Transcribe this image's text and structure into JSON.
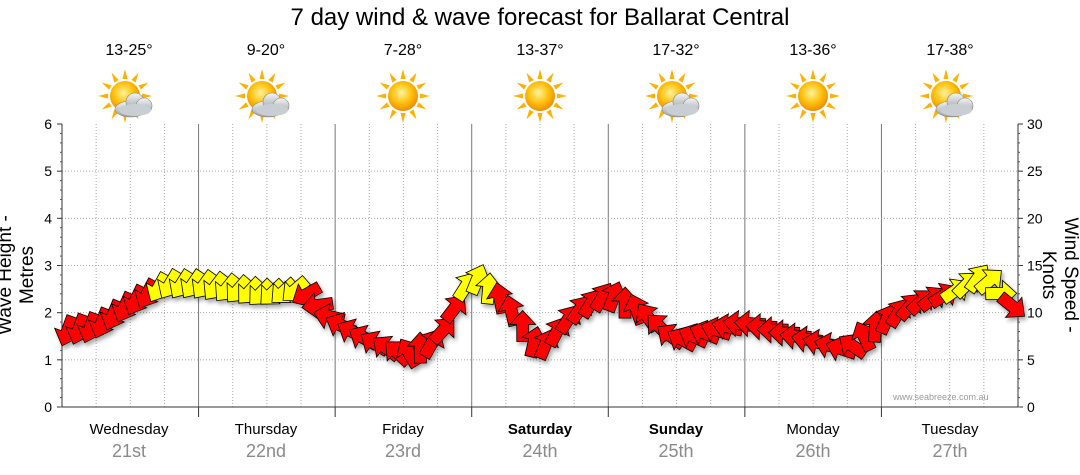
{
  "title": "7 day wind & wave forecast for Ballarat Central",
  "days": [
    {
      "name": "Wednesday",
      "date": "21st",
      "temp": "13-25°",
      "icon": "partly-cloudy-sun-icon",
      "bold": false
    },
    {
      "name": "Thursday",
      "date": "22nd",
      "temp": "9-20°",
      "icon": "partly-cloudy-sun-icon",
      "bold": false
    },
    {
      "name": "Friday",
      "date": "23rd",
      "temp": "7-28°",
      "icon": "sun-icon",
      "bold": false
    },
    {
      "name": "Saturday",
      "date": "24th",
      "temp": "13-37°",
      "icon": "sun-icon",
      "bold": true
    },
    {
      "name": "Sunday",
      "date": "25th",
      "temp": "17-32°",
      "icon": "partly-cloudy-sun-icon",
      "bold": true
    },
    {
      "name": "Monday",
      "date": "26th",
      "temp": "13-36°",
      "icon": "sun-icon",
      "bold": false
    },
    {
      "name": "Tuesday",
      "date": "27th",
      "temp": "17-38°",
      "icon": "partly-cloudy-sun-icon",
      "bold": false
    }
  ],
  "credit": "www.seabreeze.com.au",
  "colors": {
    "strong_wind": "#ff0000",
    "moderate_wind": "#ffff00",
    "grid": "#aaaaaa"
  },
  "chart_data": {
    "type": "line",
    "title": "7 day wind & wave forecast for Ballarat Central",
    "ylabel": "Wave Height - Metres",
    "y2label": "Wind Speed - Knots",
    "ylim": [
      0,
      6
    ],
    "y2lim": [
      0,
      30
    ],
    "yticks": [
      "0",
      "1",
      "2",
      "3",
      "4",
      "5",
      "6"
    ],
    "y2ticks": [
      "0",
      "5",
      "10",
      "15",
      "20",
      "25",
      "30"
    ],
    "xlim": [
      0,
      7
    ],
    "grid": true,
    "series": [
      {
        "type": "wind-arrows",
        "x": [
          0.0,
          0.25,
          0.5,
          0.75,
          1.0,
          1.25,
          1.5,
          1.75,
          2.0,
          2.25,
          2.5,
          2.75,
          3.0,
          3.25,
          3.5,
          3.75,
          4.0,
          4.25,
          4.5,
          4.75,
          5.0,
          5.25,
          5.5,
          5.75,
          6.0,
          6.25,
          6.5,
          6.75,
          7.0
        ],
        "speed_knots": [
          8,
          8.5,
          11,
          13,
          13,
          12.5,
          12,
          12.5,
          9,
          7,
          5.5,
          7,
          14,
          11,
          6,
          10,
          12,
          10,
          7,
          8,
          9,
          8,
          7,
          6,
          9,
          11,
          12,
          14,
          10
        ],
        "direction_deg": [
          200,
          200,
          205,
          210,
          215,
          220,
          225,
          230,
          295,
          300,
          315,
          45,
          30,
          340,
          20,
          35,
          30,
          330,
          300,
          290,
          275,
          270,
          280,
          290,
          20,
          45,
          60,
          30,
          150
        ]
      }
    ]
  }
}
